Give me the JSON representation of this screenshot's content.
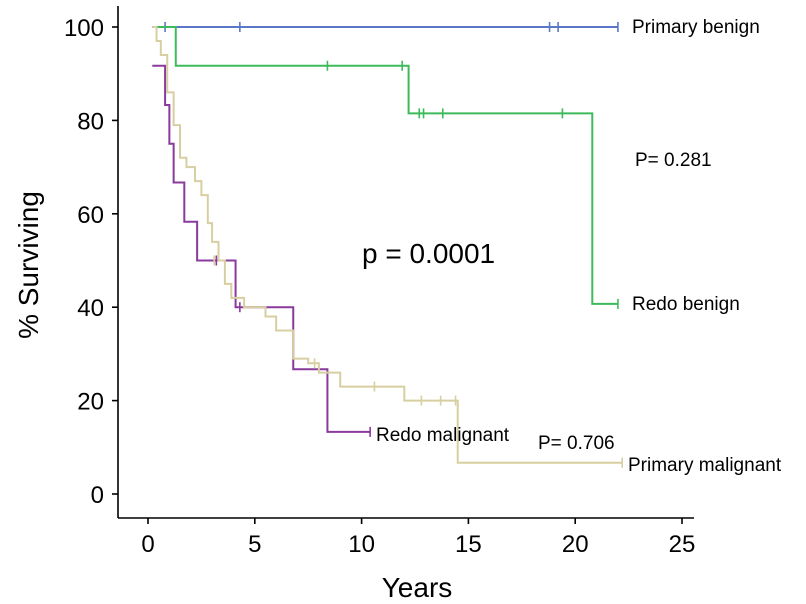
{
  "chart_data": {
    "type": "line",
    "subtype": "kaplan-meier",
    "xlabel": "Years",
    "ylabel": "% Surviving",
    "xlim": [
      0,
      25
    ],
    "ylim": [
      0,
      100
    ],
    "x_ticks": [
      0,
      5,
      10,
      15,
      20,
      25
    ],
    "y_ticks": [
      0,
      20,
      40,
      60,
      80,
      100
    ],
    "grid": false,
    "series": [
      {
        "name": "Primary benign",
        "color": "#5b78c8",
        "steps": [
          [
            0.2,
            100
          ],
          [
            22,
            100
          ]
        ],
        "censored": [
          [
            0.8,
            100
          ],
          [
            4.3,
            100
          ],
          [
            18.8,
            100
          ],
          [
            19.2,
            100
          ],
          [
            22,
            100
          ]
        ]
      },
      {
        "name": "Redo benign",
        "color": "#3dbb5b",
        "steps": [
          [
            0.2,
            100
          ],
          [
            1.3,
            91.7
          ],
          [
            12.2,
            81.5
          ],
          [
            20.8,
            40.7
          ],
          [
            22,
            40.7
          ]
        ],
        "censored": [
          [
            8.4,
            91.7
          ],
          [
            11.9,
            91.7
          ],
          [
            12.7,
            81.5
          ],
          [
            12.9,
            81.5
          ],
          [
            13.8,
            81.5
          ],
          [
            19.4,
            81.5
          ],
          [
            22,
            40.7
          ]
        ]
      },
      {
        "name": "Redo malignant",
        "color": "#8a3a9c",
        "steps": [
          [
            0.2,
            91.7
          ],
          [
            0.8,
            83.3
          ],
          [
            1.0,
            75
          ],
          [
            1.2,
            66.7
          ],
          [
            1.7,
            58.3
          ],
          [
            2.3,
            50
          ],
          [
            4.1,
            40
          ],
          [
            6.8,
            26.7
          ],
          [
            8.4,
            13.3
          ],
          [
            10.4,
            13.3
          ]
        ],
        "censored": [
          [
            3.2,
            50
          ],
          [
            4.3,
            40
          ],
          [
            10.4,
            13.3
          ]
        ]
      },
      {
        "name": "Primary malignant",
        "color": "#d8cfa0",
        "steps": [
          [
            0.2,
            100
          ],
          [
            0.4,
            97
          ],
          [
            0.6,
            94
          ],
          [
            0.9,
            86
          ],
          [
            1.2,
            79
          ],
          [
            1.5,
            72
          ],
          [
            1.8,
            70
          ],
          [
            2.2,
            67
          ],
          [
            2.5,
            64
          ],
          [
            2.8,
            58
          ],
          [
            3.0,
            54
          ],
          [
            3.3,
            50
          ],
          [
            3.6,
            45
          ],
          [
            3.9,
            42
          ],
          [
            4.5,
            40
          ],
          [
            5.5,
            38
          ],
          [
            6.0,
            35
          ],
          [
            6.8,
            29
          ],
          [
            7.5,
            28
          ],
          [
            8.0,
            26
          ],
          [
            9.0,
            23
          ],
          [
            12.0,
            20
          ],
          [
            14.5,
            6.7
          ],
          [
            22.2,
            6.7
          ]
        ],
        "censored": [
          [
            3.1,
            50
          ],
          [
            7.8,
            28
          ],
          [
            10.6,
            23
          ],
          [
            12.8,
            20
          ],
          [
            13.7,
            20
          ],
          [
            14.4,
            20
          ],
          [
            22.2,
            6.7
          ]
        ]
      }
    ],
    "annotations": {
      "p_overall": "p = 0.0001",
      "p_benign": "P= 0.281",
      "p_malignant": "P= 0.706"
    }
  }
}
